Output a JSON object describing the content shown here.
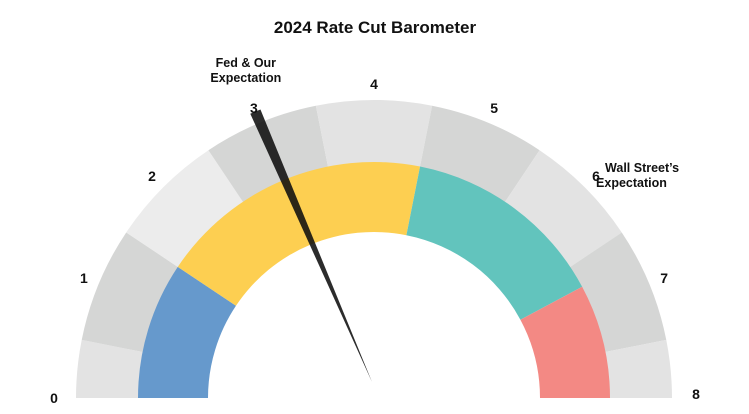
{
  "chart_data": {
    "type": "gauge",
    "title": "2024 Rate Cut Barometer",
    "scale": {
      "min": 0,
      "max": 8,
      "ticks": [
        "0",
        "1",
        "2",
        "3",
        "4",
        "5",
        "6",
        "7",
        "8"
      ]
    },
    "outer_band_colors": [
      "#e3e3e3",
      "#d5d6d5",
      "#ececec",
      "#d5d6d5",
      "#e3e3e3",
      "#d5d6d5",
      "#e3e3e3",
      "#d5d6d5",
      "#e3e3e3"
    ],
    "inner_bands": [
      {
        "from": 0,
        "to": 1.5,
        "color": "#6699cc"
      },
      {
        "from": 1.5,
        "to": 4.5,
        "color": "#fdcf51"
      },
      {
        "from": 4.5,
        "to": 6.75,
        "color": "#62c4bd"
      },
      {
        "from": 6.75,
        "to": 8,
        "color": "#f38984"
      }
    ],
    "needle": {
      "value": 3
    },
    "annotations": [
      {
        "value": 3,
        "lines": [
          "Fed & Our",
          "Expectation"
        ]
      },
      {
        "value": 6,
        "lines": [
          "Wall Street’s",
          "Expectation"
        ]
      }
    ]
  }
}
